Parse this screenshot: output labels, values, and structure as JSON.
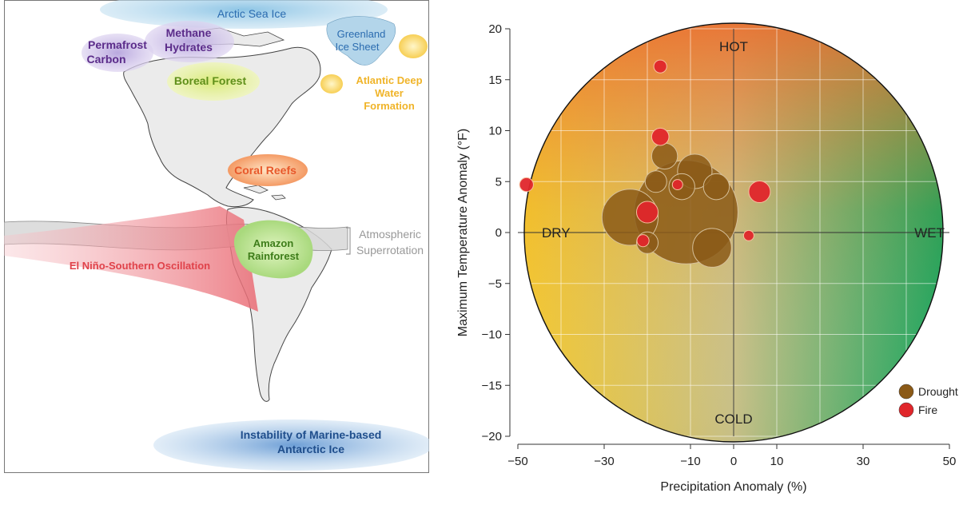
{
  "map": {
    "labels": {
      "arctic_sea_ice": "Arctic Sea Ice",
      "greenland_ice_sheet_1": "Greenland",
      "greenland_ice_sheet_2": "Ice Sheet",
      "permafrost_carbon_1": "Permafrost",
      "permafrost_carbon_2": "Carbon",
      "methane_hydrates_1": "Methane",
      "methane_hydrates_2": "Hydrates",
      "boreal_forest": "Boreal Forest",
      "atlantic_1": "Atlantic Deep",
      "atlantic_2": "Water",
      "atlantic_3": "Formation",
      "coral_reefs": "Coral Reefs",
      "atmospheric_1": "Atmospheric",
      "atmospheric_2": "Superrotation",
      "amazon_1": "Amazon",
      "amazon_2": "Rainforest",
      "enso": "El Niño-Southern Oscillation",
      "antarctic_1": "Instability of Marine-based",
      "antarctic_2": "Antarctic Ice"
    },
    "colors": {
      "arctic": "#2b6cb0",
      "permafrost": "#5b2c8a",
      "boreal": "#5f8f1a",
      "atlantic": "#f0b429",
      "coral": "#e8582a",
      "atmospheric": "#999999",
      "amazon": "#3e7d1a",
      "enso": "#e0424a",
      "antarctic": "#1f4e8c"
    }
  },
  "chart_data": {
    "type": "scatter",
    "xlabel": "Precipitation Anomaly (%)",
    "ylabel": "Maximum Temperature Anomaly (°F)",
    "xlim": [
      -50,
      50
    ],
    "ylim": [
      -20,
      20
    ],
    "xticks": [
      -50,
      -30,
      -10,
      0,
      10,
      30,
      50
    ],
    "yticks": [
      -20,
      -15,
      -10,
      -5,
      0,
      5,
      10,
      15,
      20
    ],
    "grid": true,
    "quadrant_labels": {
      "top": "HOT",
      "bottom": "COLD",
      "left": "DRY",
      "right": "WET"
    },
    "legend": {
      "position": "bottom-right",
      "items": [
        {
          "name": "Drought",
          "color": "#8b5a17"
        },
        {
          "name": "Fire",
          "color": "#e0262b"
        }
      ]
    },
    "series": [
      {
        "name": "Drought",
        "color": "#8b5a17",
        "points": [
          {
            "x": -11,
            "y": 2,
            "size": 12
          },
          {
            "x": -24,
            "y": 1.5,
            "size": 6.5
          },
          {
            "x": -9,
            "y": 6,
            "size": 4
          },
          {
            "x": -5,
            "y": -1.5,
            "size": 4.5
          },
          {
            "x": -16,
            "y": 7.5,
            "size": 3
          },
          {
            "x": -18,
            "y": 5,
            "size": 2.5
          },
          {
            "x": -4,
            "y": 4.5,
            "size": 3
          },
          {
            "x": -12,
            "y": 4.5,
            "size": 3
          },
          {
            "x": -20,
            "y": -1,
            "size": 2.5
          }
        ]
      },
      {
        "name": "Fire",
        "color": "#e0262b",
        "points": [
          {
            "x": -48,
            "y": 4.7,
            "size": 1.6
          },
          {
            "x": -17,
            "y": 16.3,
            "size": 1.5
          },
          {
            "x": -17,
            "y": 9.4,
            "size": 2
          },
          {
            "x": -20,
            "y": 2,
            "size": 2.5
          },
          {
            "x": -21,
            "y": -0.8,
            "size": 1.4
          },
          {
            "x": 6,
            "y": 4,
            "size": 2.5
          },
          {
            "x": 3.5,
            "y": -0.3,
            "size": 1.2
          },
          {
            "x": -13,
            "y": 4.7,
            "size": 1.2
          }
        ]
      }
    ]
  }
}
